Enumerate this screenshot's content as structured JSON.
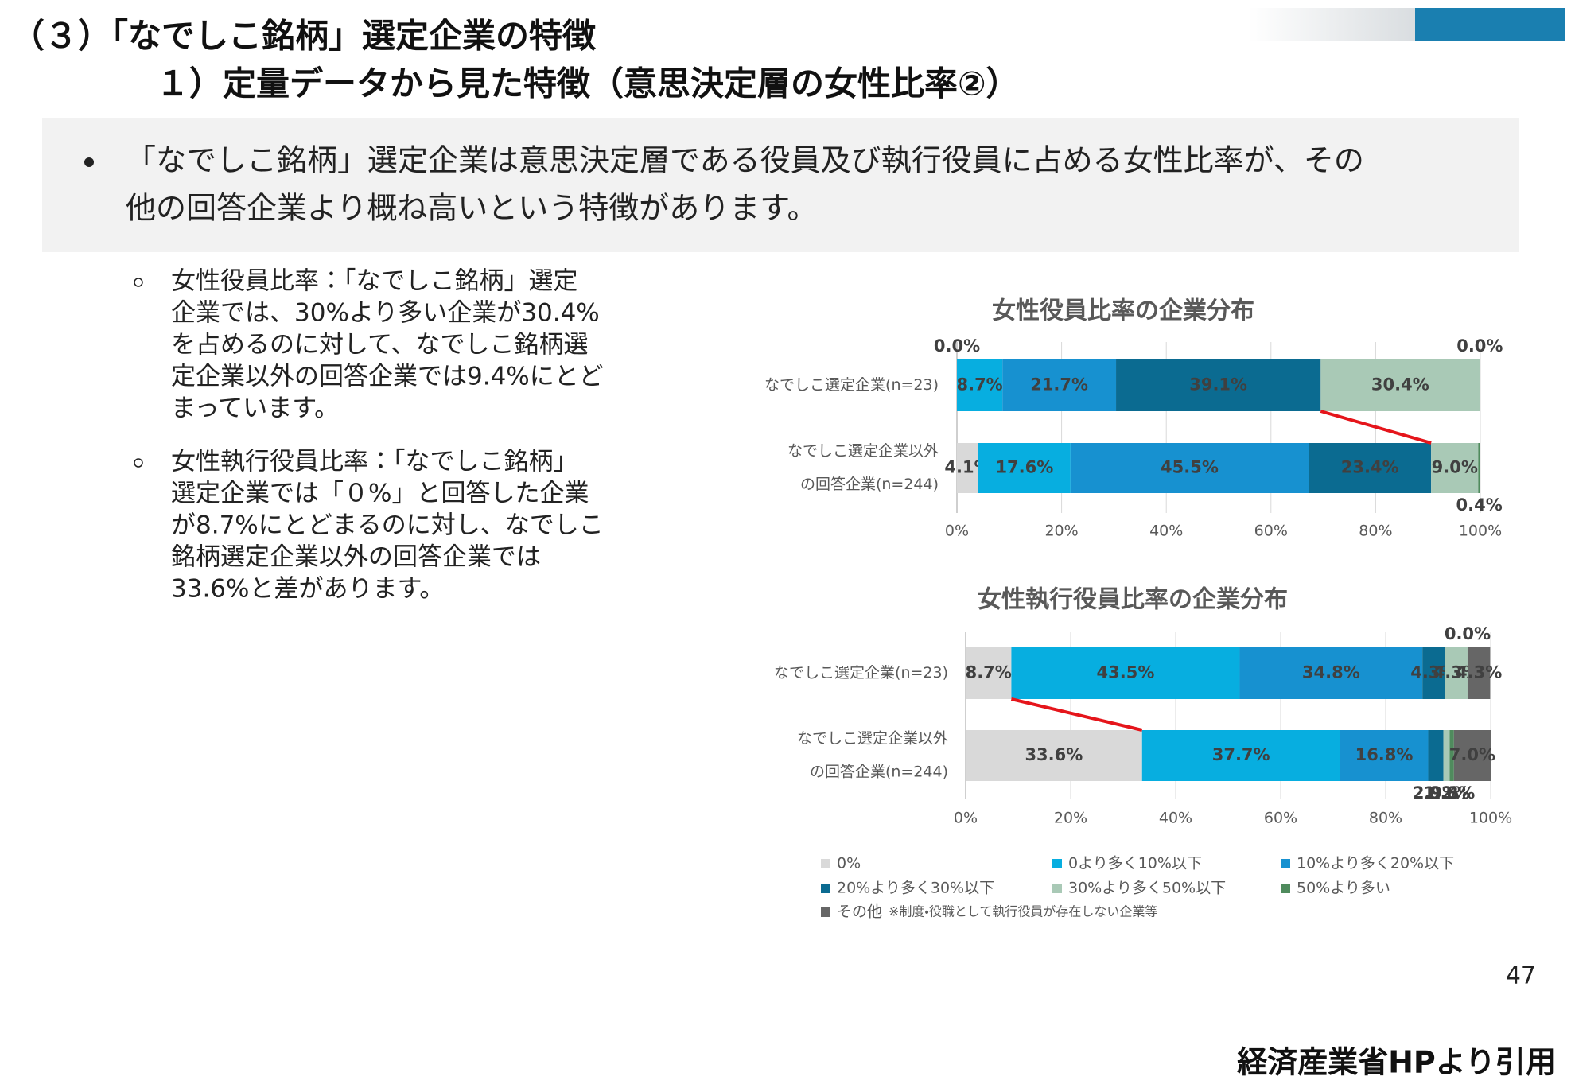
{
  "header": {
    "title": "（３）「なでしこ銘柄」選定企業の特徴",
    "subtitle": "１）定量データから見た特徴（意思決定層の女性比率②）"
  },
  "summary": {
    "lines": [
      "「なでしこ銘柄」選定企業は意思決定層である役員及び執行役員に占める女性比率が、その",
      "他の回答企業より概ね高いという特徴があります。"
    ]
  },
  "points": [
    [
      "女性役員比率：「なでしこ銘柄」選定",
      "企業では、30%より多い企業が30.4%",
      "を占めるのに対して、なでしこ銘柄選",
      "定企業以外の回答企業では9.4%にとど",
      "まっています。"
    ],
    [
      "女性執行役員比率：「なでしこ銘柄」",
      "選定企業では「０%」と回答した企業",
      "が8.7%にとどまるのに対し、なでしこ",
      "銘柄選定企業以外の回答企業では",
      "33.6%と差があります。"
    ]
  ],
  "chart_data": [
    {
      "type": "stacked-barh",
      "title": "女性役員比率の企業分布",
      "categories": [
        [
          "なでしこ選定企業(n=23)"
        ],
        [
          "なでしこ選定企業以外",
          "の回答企業(n=244)"
        ]
      ],
      "xlim": [
        0,
        100
      ],
      "xticks": [
        {
          "value": 0,
          "label": "0%"
        },
        {
          "value": 20,
          "label": "20%"
        },
        {
          "value": 40,
          "label": "40%"
        },
        {
          "value": 60,
          "label": "60%"
        },
        {
          "value": 80,
          "label": "80%"
        },
        {
          "value": 100,
          "label": "100%"
        }
      ],
      "grid": true,
      "series": [
        {
          "name": "0%",
          "color": "#d9d9d9",
          "values": [
            0.0,
            4.1
          ],
          "value_labels": [
            "0.0%",
            "4.1%"
          ]
        },
        {
          "name": "0より多く10%以下",
          "color": "#07aee0",
          "values": [
            8.7,
            17.6
          ],
          "value_labels": [
            "8.7%",
            "17.6%"
          ]
        },
        {
          "name": "10%より多く20%以下",
          "color": "#1791d0",
          "values": [
            21.7,
            45.5
          ],
          "value_labels": [
            "21.7%",
            "45.5%"
          ]
        },
        {
          "name": "20%より多く30%以下",
          "color": "#0b6b91",
          "values": [
            39.1,
            23.4
          ],
          "value_labels": [
            "39.1%",
            "23.4%"
          ]
        },
        {
          "name": "30%より多く50%以下",
          "color": "#a9c9b6",
          "values": [
            30.4,
            9.0
          ],
          "value_labels": [
            "30.4%",
            "9.0%"
          ]
        },
        {
          "name": "50%より多い",
          "color": "#4f8b5d",
          "values": [
            0.0,
            0.4
          ],
          "value_labels": [
            "0.0%",
            "0.4%"
          ]
        }
      ]
    },
    {
      "type": "stacked-barh",
      "title": "女性執行役員比率の企業分布",
      "categories": [
        [
          "なでしこ選定企業(n=23)"
        ],
        [
          "なでしこ選定企業以外",
          "の回答企業(n=244)"
        ]
      ],
      "xlim": [
        0,
        100
      ],
      "xticks": [
        {
          "value": 0,
          "label": "0%"
        },
        {
          "value": 20,
          "label": "20%"
        },
        {
          "value": 40,
          "label": "40%"
        },
        {
          "value": 60,
          "label": "60%"
        },
        {
          "value": 80,
          "label": "80%"
        },
        {
          "value": 100,
          "label": "100%"
        }
      ],
      "grid": true,
      "series": [
        {
          "name": "0%",
          "color": "#d9d9d9",
          "values": [
            8.7,
            33.6
          ],
          "value_labels": [
            "8.7%",
            "33.6%"
          ]
        },
        {
          "name": "0より多く10%以下",
          "color": "#07aee0",
          "values": [
            43.5,
            37.7
          ],
          "value_labels": [
            "43.5%",
            "37.7%"
          ]
        },
        {
          "name": "10%より多く20%以下",
          "color": "#1791d0",
          "values": [
            34.8,
            16.8
          ],
          "value_labels": [
            "34.8%",
            "16.8%"
          ]
        },
        {
          "name": "20%より多く30%以下",
          "color": "#0b6b91",
          "values": [
            4.3,
            2.9
          ],
          "value_labels": [
            "4.3%",
            "2.9%"
          ]
        },
        {
          "name": "30%より多く50%以下",
          "color": "#a9c9b6",
          "values": [
            4.3,
            1.2
          ],
          "value_labels": [
            "4.3%",
            "1.2%"
          ]
        },
        {
          "name": "50%より多い",
          "color": "#4f8b5d",
          "values": [
            0.0,
            0.8
          ],
          "value_labels": [
            "0.0%",
            "0.8%"
          ]
        },
        {
          "name": "その他",
          "color": "#666666",
          "values": [
            4.3,
            7.0
          ],
          "value_labels": [
            "4.3%",
            "7.0%"
          ]
        }
      ]
    }
  ],
  "legend_note": "※制度・役職として執行役員が存在しない企業等",
  "page_number": "47",
  "source": "経済産業省HPより引用"
}
